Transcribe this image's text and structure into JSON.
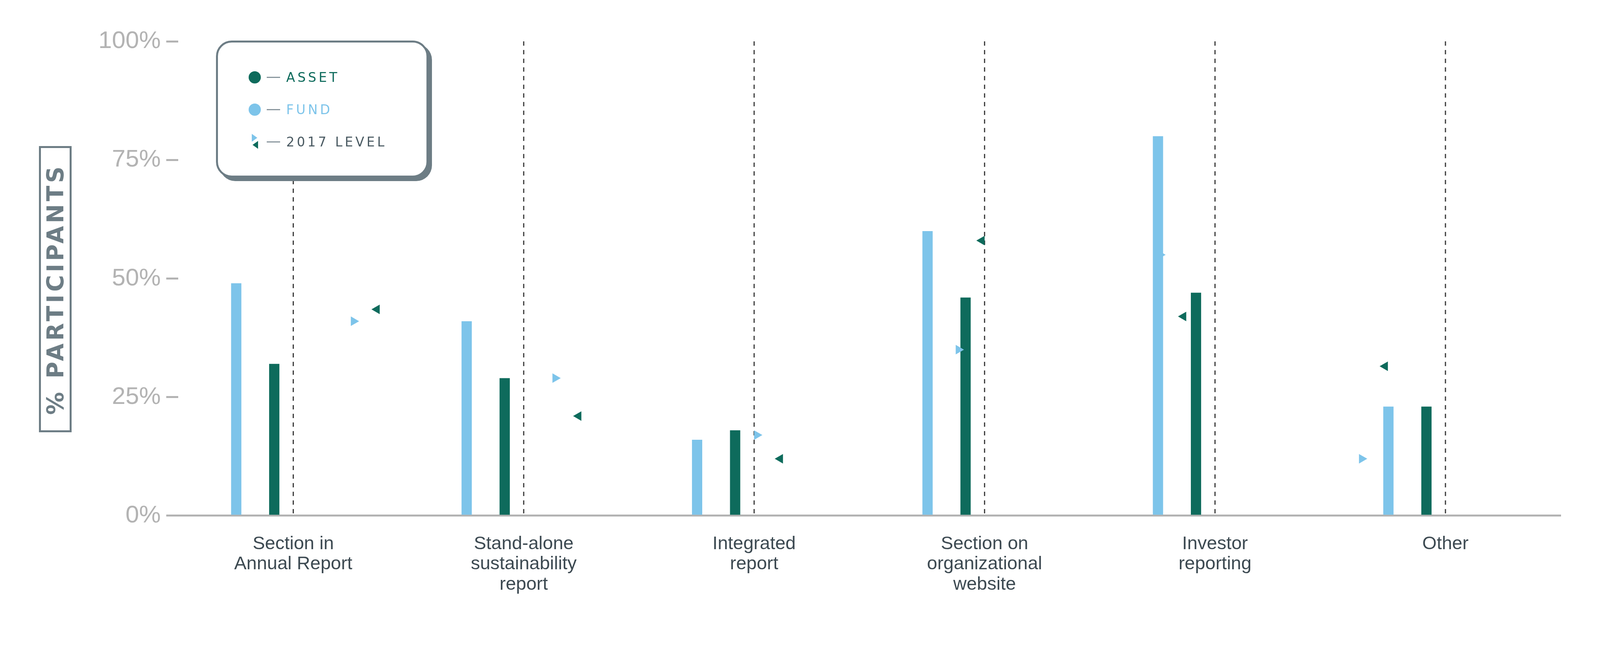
{
  "chart_data": {
    "type": "bar",
    "y_label": "% PARTICIPANTS",
    "categories": [
      "Section in Annual Report",
      "Stand-alone sustainability report",
      "Integrated report",
      "Section on organizational website",
      "Investor reporting",
      "Other"
    ],
    "series": [
      {
        "name": "FUND",
        "type": "bar",
        "color": "#7dc4ea",
        "values": [
          49,
          41,
          16,
          60,
          80,
          23
        ]
      },
      {
        "name": "ASSET",
        "type": "bar",
        "color": "#0e6b5c",
        "values": [
          32,
          29,
          18,
          46,
          47,
          23
        ]
      },
      {
        "name": "2017 LEVEL",
        "type": "scatter",
        "marker": "triangle-right",
        "color": "#7dc4ea",
        "values": [
          41,
          29,
          17,
          35,
          55,
          12
        ]
      },
      {
        "name": "2017 LEVEL",
        "type": "scatter",
        "marker": "triangle-left",
        "color": "#0e6b5c",
        "values": [
          43.5,
          21,
          12,
          58,
          42,
          31.5
        ]
      }
    ],
    "ylim": [
      0,
      100
    ],
    "yticks": [
      {
        "value": 0,
        "label": "0%"
      },
      {
        "value": 25,
        "label": "25%"
      },
      {
        "value": 50,
        "label": "50%"
      },
      {
        "value": 75,
        "label": "75%"
      },
      {
        "value": 100,
        "label": "100%"
      }
    ],
    "grid": false,
    "legend": "top-left"
  }
}
